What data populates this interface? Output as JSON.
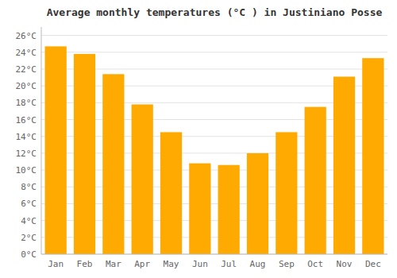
{
  "chart_data": {
    "type": "bar",
    "title": "Average monthly temperatures (°C ) in Justiniano Posse",
    "categories": [
      "Jan",
      "Feb",
      "Mar",
      "Apr",
      "May",
      "Jun",
      "Jul",
      "Aug",
      "Sep",
      "Oct",
      "Nov",
      "Dec"
    ],
    "values": [
      24.7,
      23.8,
      21.4,
      17.8,
      14.5,
      10.8,
      10.6,
      12.0,
      14.5,
      17.5,
      21.1,
      23.3
    ],
    "color": "#FFAA00",
    "ylim": [
      0,
      27
    ],
    "yticks": [
      {
        "value": 0,
        "label": "0°C"
      },
      {
        "value": 2,
        "label": "2°C"
      },
      {
        "value": 4,
        "label": "4°C"
      },
      {
        "value": 6,
        "label": "6°C"
      },
      {
        "value": 8,
        "label": "8°C"
      },
      {
        "value": 10,
        "label": "10°C"
      },
      {
        "value": 12,
        "label": "12°C"
      },
      {
        "value": 14,
        "label": "14°C"
      },
      {
        "value": 16,
        "label": "16°C"
      },
      {
        "value": 18,
        "label": "18°C"
      },
      {
        "value": 20,
        "label": "20°C"
      },
      {
        "value": 22,
        "label": "22°C"
      },
      {
        "value": 24,
        "label": "24°C"
      },
      {
        "value": 26,
        "label": "26°C"
      }
    ],
    "grid": true
  }
}
